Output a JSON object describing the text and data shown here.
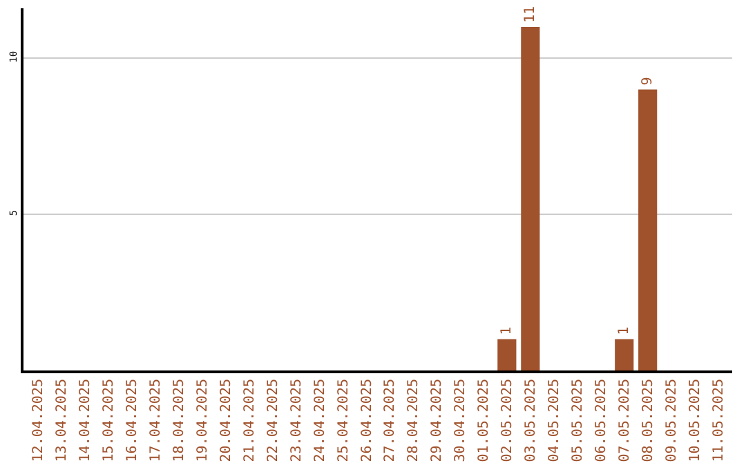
{
  "chart_data": {
    "type": "bar",
    "categories": [
      "12.04.2025",
      "13.04.2025",
      "14.04.2025",
      "15.04.2025",
      "16.04.2025",
      "17.04.2025",
      "18.04.2025",
      "19.04.2025",
      "20.04.2025",
      "21.04.2025",
      "22.04.2025",
      "23.04.2025",
      "24.04.2025",
      "25.04.2025",
      "26.04.2025",
      "27.04.2025",
      "28.04.2025",
      "29.04.2025",
      "30.04.2025",
      "01.05.2025",
      "02.05.2025",
      "03.05.2025",
      "04.05.2025",
      "05.05.2025",
      "06.05.2025",
      "07.05.2025",
      "08.05.2025",
      "09.05.2025",
      "10.05.2025",
      "11.05.2025"
    ],
    "values": [
      0,
      0,
      0,
      0,
      0,
      0,
      0,
      0,
      0,
      0,
      0,
      0,
      0,
      0,
      0,
      0,
      0,
      0,
      0,
      0,
      1,
      11,
      0,
      0,
      0,
      1,
      9,
      0,
      0,
      0
    ],
    "value_labels": [
      null,
      null,
      null,
      null,
      null,
      null,
      null,
      null,
      null,
      null,
      null,
      null,
      null,
      null,
      null,
      null,
      null,
      null,
      null,
      null,
      "1",
      "11",
      null,
      null,
      null,
      "1",
      "9",
      null,
      null,
      null
    ],
    "color": "#a0522d",
    "ylim": [
      0,
      11.6
    ],
    "yticks": [
      5,
      10
    ],
    "grid": "y",
    "legend": false
  }
}
